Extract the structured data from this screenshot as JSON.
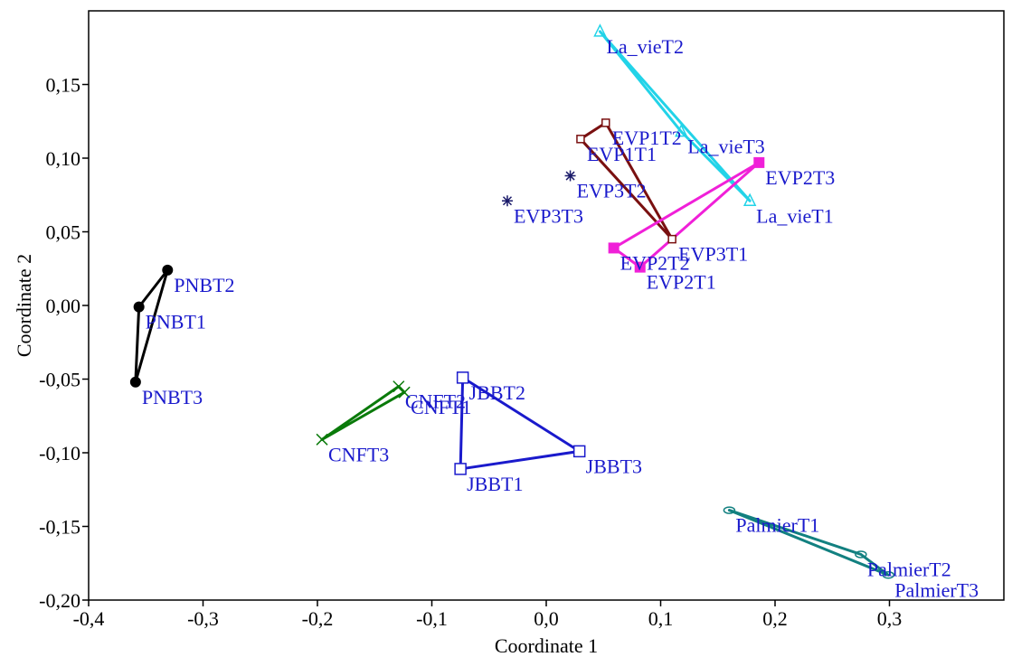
{
  "chart_data": {
    "type": "scatter",
    "xlabel": "Coordinate 1",
    "ylabel": "Coordinate 2",
    "xlim": [
      -0.4,
      0.4
    ],
    "ylim": [
      -0.2,
      0.2
    ],
    "x_ticks": [
      -0.4,
      -0.3,
      -0.2,
      -0.1,
      0.0,
      0.1,
      0.2,
      0.3
    ],
    "x_tick_labels": [
      "-0,4",
      "-0,3",
      "-0,2",
      "-0,1",
      "0,0",
      "0,1",
      "0,2",
      "0,3"
    ],
    "y_ticks": [
      -0.2,
      -0.15,
      -0.1,
      -0.05,
      0.0,
      0.05,
      0.1,
      0.15
    ],
    "y_tick_labels": [
      "-0,20",
      "-0,15",
      "-0,10",
      "-0,05",
      "0,00",
      "0,05",
      "0,10",
      "0,15"
    ],
    "grid": false,
    "label_color": "#1a1acc",
    "groups": [
      {
        "marker": "circle-filled",
        "color": "#000000",
        "hull": true,
        "points": [
          {
            "label": "PNBT2",
            "x": -0.331,
            "y": 0.024
          },
          {
            "label": "PNBT1",
            "x": -0.356,
            "y": -0.001
          },
          {
            "label": "PNBT3",
            "x": -0.359,
            "y": -0.052
          }
        ]
      },
      {
        "marker": "x",
        "color": "#0a7a0a",
        "hull": true,
        "points": [
          {
            "label": "CNFT2",
            "x": -0.129,
            "y": -0.055
          },
          {
            "label": "CNFT1",
            "x": -0.124,
            "y": -0.059
          },
          {
            "label": "CNFT3",
            "x": -0.196,
            "y": -0.091
          }
        ]
      },
      {
        "marker": "square-open",
        "color": "#1a1acc",
        "hull": true,
        "points": [
          {
            "label": "JBBT2",
            "x": -0.073,
            "y": -0.049
          },
          {
            "label": "JBBT1",
            "x": -0.075,
            "y": -0.111
          },
          {
            "label": "JBBT3",
            "x": 0.029,
            "y": -0.099
          }
        ]
      },
      {
        "marker": "circle-open",
        "color": "#128080",
        "hull": true,
        "points": [
          {
            "label": "PalmierT1",
            "x": 0.16,
            "y": -0.139
          },
          {
            "label": "PalmierT2",
            "x": 0.275,
            "y": -0.169
          },
          {
            "label": "PalmierT3",
            "x": 0.299,
            "y": -0.183
          }
        ]
      },
      {
        "marker": "triangle-open",
        "color": "#22d3e8",
        "hull": true,
        "points": [
          {
            "label": "La_vieT2",
            "x": 0.047,
            "y": 0.186
          },
          {
            "label": "La_vieT3",
            "x": 0.118,
            "y": 0.118
          },
          {
            "label": "La_vieT1",
            "x": 0.178,
            "y": 0.071
          }
        ]
      },
      {
        "marker": "square-small",
        "color": "#7a1010",
        "hull": true,
        "points": [
          {
            "label": "EVP1T2",
            "x": 0.052,
            "y": 0.124
          },
          {
            "label": "EVP1T1",
            "x": 0.03,
            "y": 0.113
          },
          {
            "label": "EVP3T1",
            "x": 0.11,
            "y": 0.045
          }
        ]
      },
      {
        "marker": "square-filled",
        "color": "#f020d8",
        "hull": true,
        "points": [
          {
            "label": "EVP2T3",
            "x": 0.186,
            "y": 0.097
          },
          {
            "label": "EVP2T2",
            "x": 0.059,
            "y": 0.039
          },
          {
            "label": "EVP2T1",
            "x": 0.082,
            "y": 0.026
          }
        ]
      },
      {
        "marker": "asterisk",
        "color": "#1a1a6a",
        "hull": false,
        "points": [
          {
            "label": "EVP3T2",
            "x": 0.021,
            "y": 0.088
          },
          {
            "label": "EVP3T3",
            "x": -0.034,
            "y": 0.071
          }
        ]
      }
    ]
  }
}
